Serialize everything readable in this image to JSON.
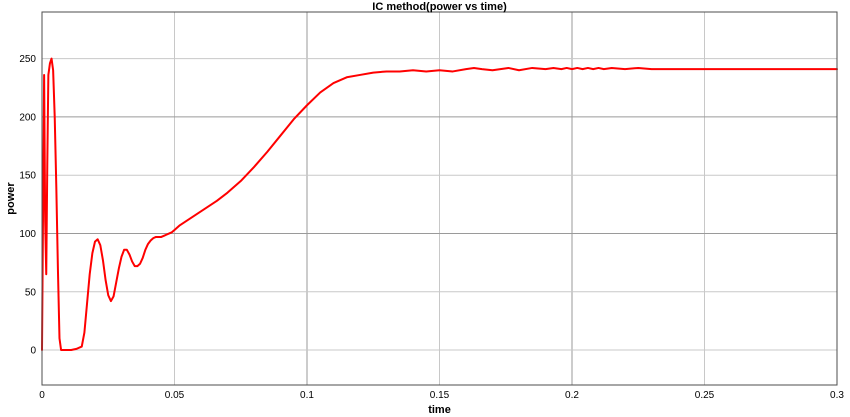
{
  "colors": {
    "series": "#ff0000",
    "axis": "#4d4d4d",
    "grid": "#c8c8c8",
    "background": "#ffffff"
  },
  "chart_data": {
    "type": "line",
    "title": "IC method(power vs time)",
    "xlabel": "time",
    "ylabel": "power",
    "xlim": [
      0,
      0.3
    ],
    "ylim": [
      -30,
      290
    ],
    "grid": true,
    "xticks": [
      0,
      0.05,
      0.1,
      0.15,
      0.2,
      0.25,
      0.3
    ],
    "xtick_labels": [
      "0",
      "0.05",
      "0.1",
      "0.15",
      "0.2",
      "0.25",
      "0.3"
    ],
    "yticks": [
      0,
      50,
      100,
      150,
      200,
      250
    ],
    "ytick_labels": [
      "0",
      "50",
      "100",
      "150",
      "200",
      "250"
    ],
    "series": [
      {
        "x": [
          0,
          0.0008,
          0.0012,
          0.0016,
          0.002,
          0.0024,
          0.003,
          0.0036,
          0.0042,
          0.0048,
          0.0054,
          0.006,
          0.0066,
          0.0072,
          0.0078,
          0.0084,
          0.009,
          0.0096,
          0.011,
          0.013,
          0.015,
          0.016,
          0.017,
          0.018,
          0.019,
          0.02,
          0.021,
          0.022,
          0.023,
          0.024,
          0.025,
          0.026,
          0.027,
          0.028,
          0.029,
          0.03,
          0.031,
          0.032,
          0.033,
          0.034,
          0.035,
          0.036,
          0.037,
          0.038,
          0.039,
          0.04,
          0.041,
          0.042,
          0.043,
          0.044,
          0.045,
          0.046,
          0.047,
          0.048,
          0.049,
          0.05,
          0.052,
          0.054,
          0.056,
          0.058,
          0.06,
          0.062,
          0.064,
          0.066,
          0.07,
          0.075,
          0.08,
          0.085,
          0.09,
          0.095,
          0.1,
          0.105,
          0.11,
          0.115,
          0.12,
          0.125,
          0.13,
          0.135,
          0.14,
          0.145,
          0.15,
          0.155,
          0.16,
          0.163,
          0.166,
          0.17,
          0.173,
          0.176,
          0.18,
          0.185,
          0.19,
          0.193,
          0.196,
          0.198,
          0.2,
          0.202,
          0.204,
          0.206,
          0.208,
          0.21,
          0.212,
          0.215,
          0.22,
          0.225,
          0.23,
          0.24,
          0.25,
          0.26,
          0.27,
          0.28,
          0.29,
          0.3
        ],
        "y": [
          0,
          236,
          110,
          65,
          160,
          236,
          246,
          250,
          240,
          200,
          140,
          70,
          10,
          0,
          0,
          0,
          0,
          0,
          0,
          1,
          3,
          15,
          40,
          65,
          83,
          93,
          95,
          90,
          77,
          60,
          47,
          42,
          46,
          58,
          70,
          80,
          86,
          86,
          82,
          76,
          72,
          72,
          74,
          79,
          86,
          91,
          94,
          96,
          97,
          97,
          97,
          98,
          99,
          100,
          101,
          103,
          107,
          110,
          113,
          116,
          119,
          122,
          125,
          128,
          135,
          145,
          157,
          170,
          184,
          198,
          210,
          221,
          229,
          234,
          236,
          238,
          239,
          239,
          240,
          239,
          240,
          239,
          241,
          242,
          241,
          240,
          241,
          242,
          240,
          242,
          241,
          242,
          241,
          242,
          241,
          242,
          241,
          242,
          241,
          242,
          241,
          242,
          241,
          242,
          241,
          241,
          241,
          241,
          241,
          241,
          241,
          241
        ]
      }
    ]
  }
}
